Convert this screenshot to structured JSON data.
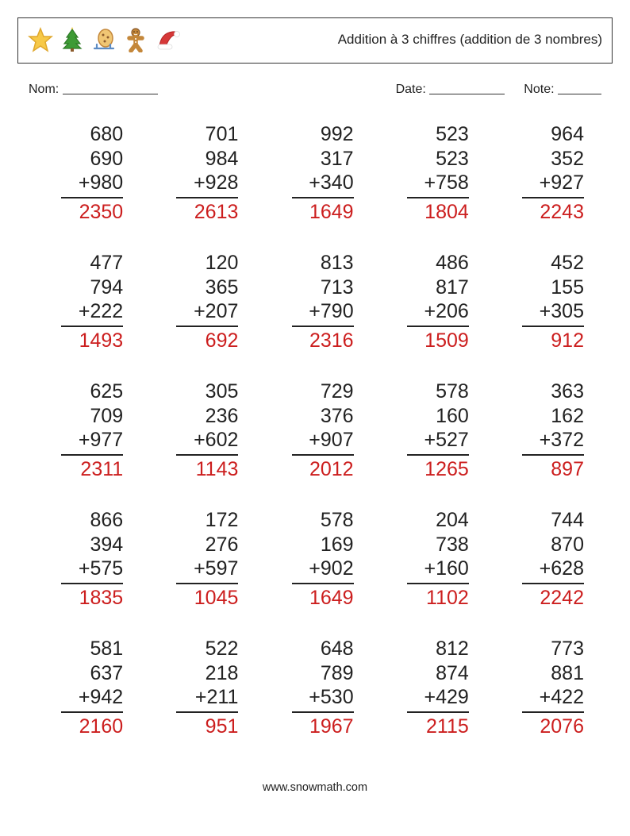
{
  "header": {
    "title": "Addition à 3 chiffres (addition de 3 nombres)",
    "icons": [
      "star",
      "tree",
      "sled",
      "gingerbread",
      "hat"
    ]
  },
  "info": {
    "name_label": "Nom:",
    "date_label": "Date:",
    "note_label": "Note:",
    "name_blank_width": 120,
    "date_blank_width": 95,
    "note_blank_width": 55
  },
  "layout": {
    "columns": 5,
    "rows": 5
  },
  "styling": {
    "text_color": "#222222",
    "answer_color": "#cc1e1e",
    "problem_fontsize": 25,
    "title_fontsize": 17,
    "info_fontsize": 16,
    "footer_fontsize": 14.5,
    "rule_width": 78,
    "background": "#ffffff"
  },
  "problems": [
    {
      "a": 680,
      "b": 690,
      "c": 980,
      "ans": 2350
    },
    {
      "a": 701,
      "b": 984,
      "c": 928,
      "ans": 2613
    },
    {
      "a": 992,
      "b": 317,
      "c": 340,
      "ans": 1649
    },
    {
      "a": 523,
      "b": 523,
      "c": 758,
      "ans": 1804
    },
    {
      "a": 964,
      "b": 352,
      "c": 927,
      "ans": 2243
    },
    {
      "a": 477,
      "b": 794,
      "c": 222,
      "ans": 1493
    },
    {
      "a": 120,
      "b": 365,
      "c": 207,
      "ans": 692
    },
    {
      "a": 813,
      "b": 713,
      "c": 790,
      "ans": 2316
    },
    {
      "a": 486,
      "b": 817,
      "c": 206,
      "ans": 1509
    },
    {
      "a": 452,
      "b": 155,
      "c": 305,
      "ans": 912
    },
    {
      "a": 625,
      "b": 709,
      "c": 977,
      "ans": 2311
    },
    {
      "a": 305,
      "b": 236,
      "c": 602,
      "ans": 1143
    },
    {
      "a": 729,
      "b": 376,
      "c": 907,
      "ans": 2012
    },
    {
      "a": 578,
      "b": 160,
      "c": 527,
      "ans": 1265
    },
    {
      "a": 363,
      "b": 162,
      "c": 372,
      "ans": 897
    },
    {
      "a": 866,
      "b": 394,
      "c": 575,
      "ans": 1835
    },
    {
      "a": 172,
      "b": 276,
      "c": 597,
      "ans": 1045
    },
    {
      "a": 578,
      "b": 169,
      "c": 902,
      "ans": 1649
    },
    {
      "a": 204,
      "b": 738,
      "c": 160,
      "ans": 1102
    },
    {
      "a": 744,
      "b": 870,
      "c": 628,
      "ans": 2242
    },
    {
      "a": 581,
      "b": 637,
      "c": 942,
      "ans": 2160
    },
    {
      "a": 522,
      "b": 218,
      "c": 211,
      "ans": 951
    },
    {
      "a": 648,
      "b": 789,
      "c": 530,
      "ans": 1967
    },
    {
      "a": 812,
      "b": 874,
      "c": 429,
      "ans": 2115
    },
    {
      "a": 773,
      "b": 881,
      "c": 422,
      "ans": 2076
    }
  ],
  "footer": {
    "text": "www.snowmath.com"
  },
  "icon_colors": {
    "star": {
      "fill": "#f7c948",
      "stroke": "#e0a82e"
    },
    "tree": {
      "fill": "#3d9b35",
      "stroke": "#2d7a26",
      "trunk": "#8b5a2b",
      "star": "#f7c948"
    },
    "sled": {
      "fill": "#f0c674",
      "stroke": "#8b5a2b",
      "runners": "#5d8cc4"
    },
    "gingerbread": {
      "fill": "#c4873a",
      "stroke": "#8b5a2b",
      "detail": "#ffffff"
    },
    "hat": {
      "fill": "#d63838",
      "stroke": "#b22222",
      "trim": "#ffffff"
    }
  }
}
